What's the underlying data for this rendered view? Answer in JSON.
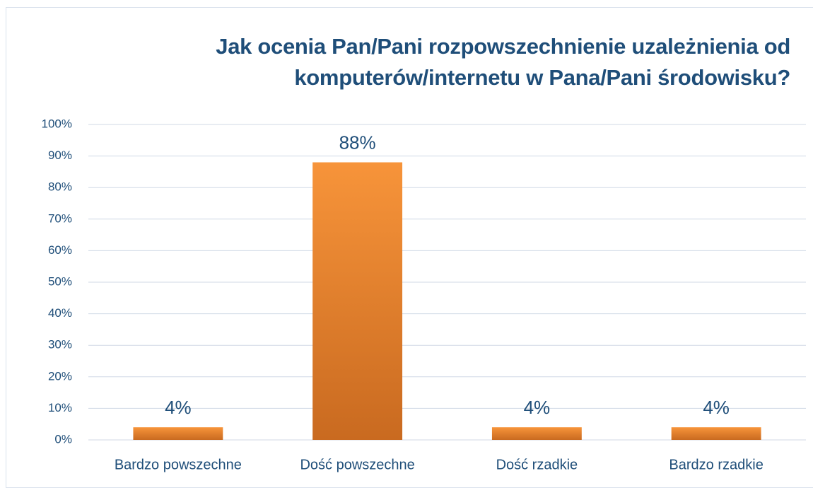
{
  "chart_data": {
    "type": "bar",
    "title": "Jak ocenia Pan/Pani rozpowszechnienie uzależnienia od komputerów/internetu w Pana/Pani środowisku?",
    "categories": [
      "Bardzo powszechne",
      "Dość powszechne",
      "Dość rzadkie",
      "Bardzo rzadkie"
    ],
    "values": [
      4,
      88,
      4,
      4
    ],
    "value_labels": [
      "4%",
      "88%",
      "4%",
      "4%"
    ],
    "color": "#f7943a",
    "ylim": [
      0,
      100
    ],
    "yticks": [
      {
        "value": 0,
        "label": "0%"
      },
      {
        "value": 10,
        "label": "10%"
      },
      {
        "value": 20,
        "label": "20%"
      },
      {
        "value": 30,
        "label": "30%"
      },
      {
        "value": 40,
        "label": "40%"
      },
      {
        "value": 50,
        "label": "50%"
      },
      {
        "value": 60,
        "label": "60%"
      },
      {
        "value": 70,
        "label": "70%"
      },
      {
        "value": 80,
        "label": "80%"
      },
      {
        "value": 90,
        "label": "90%"
      },
      {
        "value": 100,
        "label": "100%"
      }
    ],
    "grid": true
  }
}
